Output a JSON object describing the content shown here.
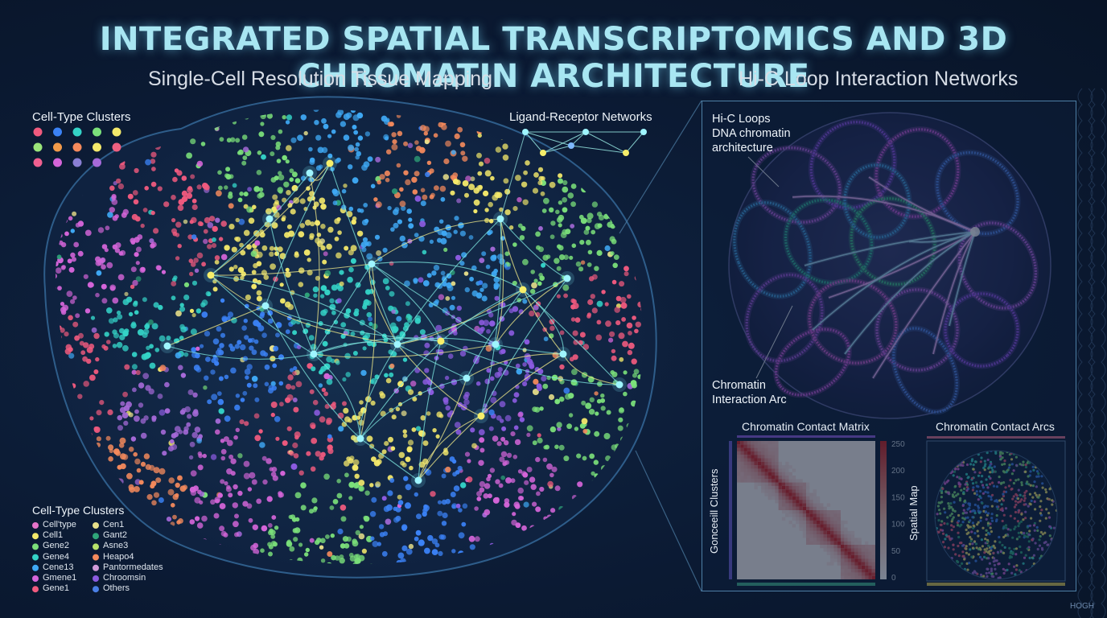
{
  "title": "INTEGRATED SPATIAL TRANSCRIPTOMICS AND 3D CHROMATIN ARCHITECTURE",
  "subtitle_left": "Single-Cell Resolution Tissue Mapping",
  "subtitle_right": "Hi-C Loop Interaction Networks",
  "top_legend": {
    "title": "Cell-Type Clusters",
    "swatches": [
      "#f05a7e",
      "#3b82f6",
      "#34d3c7",
      "#7be07a",
      "#f4e96b",
      "#9ae57a",
      "#f29a4a",
      "#f58a5c",
      "#f4e96b",
      "#f06080",
      "#f06090",
      "#d565d9",
      "#8a7fd4",
      "#a66ad9"
    ]
  },
  "network_label": "Ligand-Receptor Networks",
  "bottom_legend": {
    "title": "Cell-Type Clusters",
    "col1": [
      {
        "label": "Cell'type",
        "color": "#e573c9"
      },
      {
        "label": "Cell1",
        "color": "#f4e96b"
      },
      {
        "label": "Gene2",
        "color": "#7be07a"
      },
      {
        "label": "Gene4",
        "color": "#34d3c7"
      },
      {
        "label": "Cene13",
        "color": "#3fa9f5"
      },
      {
        "label": "Gmene1",
        "color": "#d565d9"
      },
      {
        "label": "Gene1",
        "color": "#f05a7e"
      }
    ],
    "col2": [
      {
        "label": "Cen1",
        "color": "#e8e08a"
      },
      {
        "label": "Gant2",
        "color": "#2fa67a"
      },
      {
        "label": "Asne3",
        "color": "#b7e36a"
      },
      {
        "label": "Heapo4",
        "color": "#f58a5c"
      },
      {
        "label": "Pantormedates",
        "color": "#d29bd9"
      },
      {
        "label": "Chroomsin",
        "color": "#8c5be0"
      },
      {
        "label": "Others",
        "color": "#4a7fe6"
      }
    ]
  },
  "hic": {
    "label_top_1": "Hi-C Loops",
    "label_top_2": "DNA chromatin",
    "label_top_3": "architecture",
    "label_bottom_1": "Chromatin",
    "label_bottom_2": "Interaction Arc"
  },
  "matrix": {
    "title": "Chromatin Contact Matrix",
    "ylabel": "Gonceeill Clusters",
    "colorbar_ticks": [
      "250",
      "200",
      "150",
      "100",
      "50",
      "0"
    ]
  },
  "arcs_panel": {
    "title": "Chromatin Contact Arcs",
    "ylabel": "Spatial Map"
  },
  "watermark": "HOGH",
  "colors": {
    "title": "#a8e6f2",
    "background": "#0b1a33",
    "network_line": "#7fe8e0",
    "network_node": "#7ff0ff",
    "frame": "#4e7fa6"
  }
}
